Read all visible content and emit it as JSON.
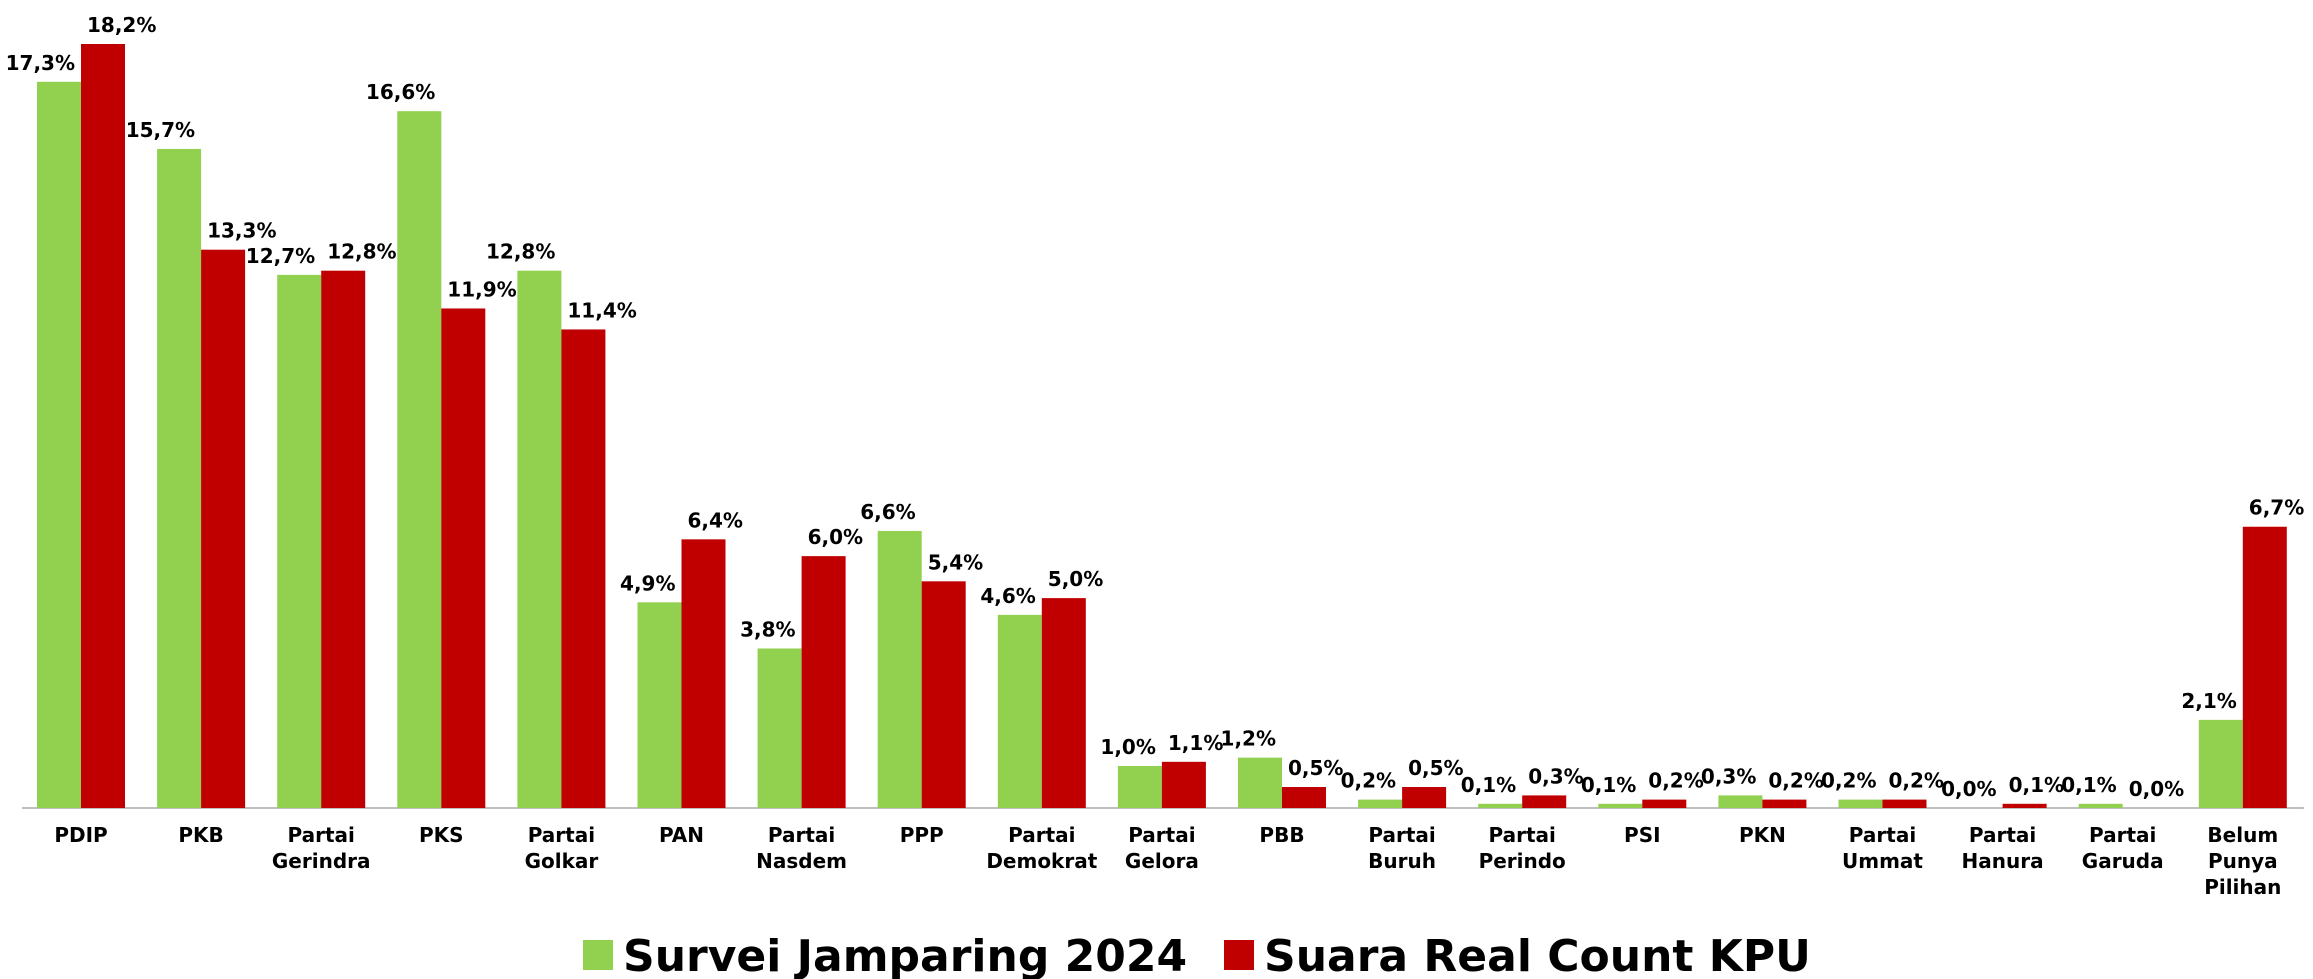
{
  "chart_data": {
    "type": "bar",
    "categories": [
      "PDIP",
      "PKB",
      "Partai Gerindra",
      "PKS",
      "Partai Golkar",
      "PAN",
      "Partai Nasdem",
      "PPP",
      "Partai Demokrat",
      "Partai Gelora",
      "PBB",
      "Partai Buruh",
      "Partai Perindo",
      "PSI",
      "PKN",
      "Partai Ummat",
      "Partai Hanura",
      "Partai Garuda",
      "Belum Punya Pilihan"
    ],
    "series": [
      {
        "name": "Survei Jamparing 2024",
        "color": "#92d050",
        "values": [
          17.3,
          15.7,
          12.7,
          16.6,
          12.8,
          4.9,
          3.8,
          6.6,
          4.6,
          1.0,
          1.2,
          0.2,
          0.1,
          0.1,
          0.3,
          0.2,
          0.0,
          0.1,
          2.1
        ],
        "value_labels": [
          "17,3%",
          "15,7%",
          "12,7%",
          "16,6%",
          "12,8%",
          "4,9%",
          "3,8%",
          "6,6%",
          "4,6%",
          "1,0%",
          "1,2%",
          "0,2%",
          "0,1%",
          "0,1%",
          "0,3%",
          "0,2%",
          "0,0%",
          "0,1%",
          "2,1%"
        ]
      },
      {
        "name": "Suara Real Count KPU",
        "color": "#c00000",
        "values": [
          18.2,
          13.3,
          12.8,
          11.9,
          11.4,
          6.4,
          6.0,
          5.4,
          5.0,
          1.1,
          0.5,
          0.5,
          0.3,
          0.2,
          0.2,
          0.2,
          0.1,
          0.0,
          6.7
        ],
        "value_labels": [
          "18,2%",
          "13,3%",
          "12,8%",
          "11,9%",
          "11,4%",
          "6,4%",
          "6,0%",
          "5,4%",
          "5,0%",
          "1,1%",
          "0,5%",
          "0,5%",
          "0,3%",
          "0,2%",
          "0,2%",
          "0,2%",
          "0,1%",
          "0,0%",
          "6,7%"
        ]
      }
    ]
  }
}
